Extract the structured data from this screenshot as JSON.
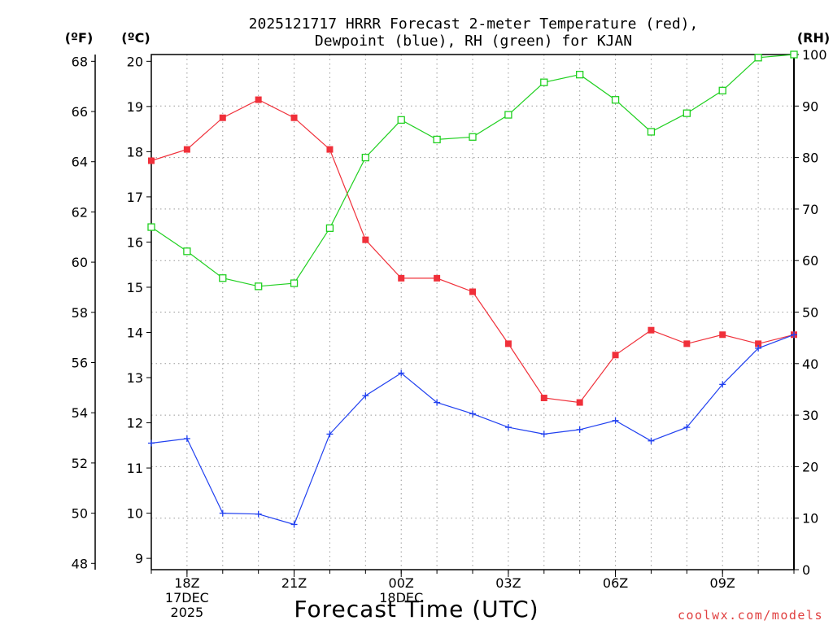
{
  "chart_data": {
    "type": "line",
    "title_line1": "2025121717 HRRR Forecast 2-meter Temperature (red),",
    "title_line2": "Dewpoint (blue), RH (green) for KJAN",
    "xlabel": "Forecast Time (UTC)",
    "watermark": "coolwx.com/models",
    "unit_labels": {
      "fahrenheit": "(ºF)",
      "celsius": "(ºC)",
      "rh": "(RH)"
    },
    "x": [
      17,
      18,
      19,
      20,
      21,
      22,
      23,
      24,
      25,
      26,
      27,
      28,
      29,
      30,
      31,
      32,
      33,
      34,
      35
    ],
    "xlim": [
      17,
      35
    ],
    "x_ticks": [
      {
        "x": 18,
        "lines": [
          "18Z",
          "17DEC",
          "2025"
        ]
      },
      {
        "x": 21,
        "lines": [
          "21Z"
        ]
      },
      {
        "x": 24,
        "lines": [
          "00Z",
          "18DEC"
        ]
      },
      {
        "x": 27,
        "lines": [
          "03Z"
        ]
      },
      {
        "x": 30,
        "lines": [
          "06Z"
        ]
      },
      {
        "x": 33,
        "lines": [
          "09Z"
        ]
      }
    ],
    "celsius_axis": {
      "lim": [
        8.75,
        20.15
      ],
      "ticks": [
        9,
        10,
        11,
        12,
        13,
        14,
        15,
        16,
        17,
        18,
        19,
        20
      ]
    },
    "fahrenheit_axis": {
      "lim": [
        47.75,
        68.27
      ],
      "ticks": [
        48,
        50,
        52,
        54,
        56,
        58,
        60,
        62,
        64,
        66,
        68
      ]
    },
    "rh_axis": {
      "lim": [
        0,
        100
      ],
      "ticks": [
        0,
        10,
        20,
        30,
        40,
        50,
        60,
        70,
        80,
        90,
        100
      ]
    },
    "series": [
      {
        "name": "2-meter Temperature",
        "axis": "celsius",
        "color": "#f0303a",
        "marker": "filled-square",
        "values": [
          17.8,
          18.05,
          18.75,
          19.15,
          18.75,
          18.05,
          16.05,
          15.2,
          15.2,
          14.9,
          13.75,
          12.55,
          12.45,
          13.5,
          14.05,
          13.75,
          13.95,
          13.75,
          13.95
        ]
      },
      {
        "name": "Dewpoint",
        "axis": "celsius",
        "color": "#2040f0",
        "marker": "plus",
        "values": [
          11.55,
          11.65,
          10.0,
          9.98,
          9.75,
          11.75,
          12.6,
          13.1,
          12.45,
          12.2,
          11.9,
          11.75,
          11.85,
          12.05,
          11.6,
          11.9,
          12.85,
          13.65,
          13.95
        ]
      },
      {
        "name": "RH",
        "axis": "rh",
        "color": "#20d020",
        "marker": "open-square",
        "values": [
          66.5,
          61.8,
          56.6,
          55.0,
          55.6,
          66.3,
          80.0,
          87.3,
          83.5,
          84.0,
          88.3,
          94.6,
          96.1,
          91.2,
          85.0,
          88.6,
          93.0,
          99.4,
          100.0
        ]
      }
    ]
  }
}
